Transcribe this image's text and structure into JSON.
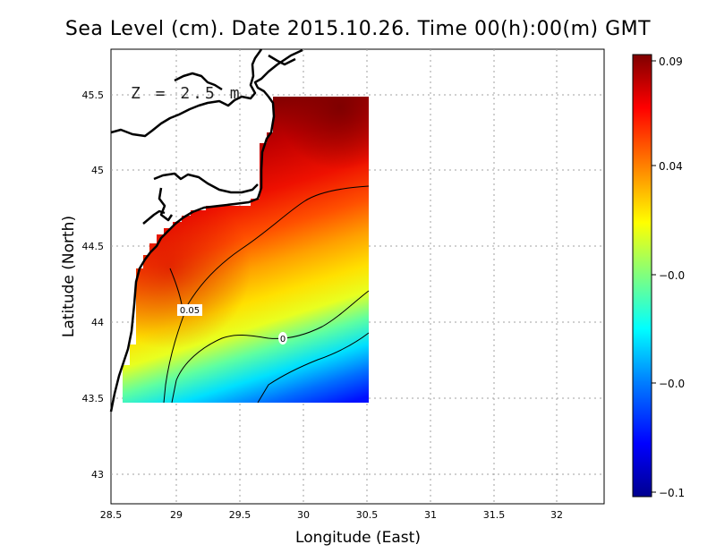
{
  "title": "Sea Level (cm). Date 2015.10.26. Time 00(h):00(m) GMT",
  "depth_label": "Z = 2.5 m",
  "colors": {
    "colormap": [
      "#00008f",
      "#0000ff",
      "#007fff",
      "#00ffff",
      "#7fff7f",
      "#ffff00",
      "#ff7f00",
      "#ff0000",
      "#7f0000"
    ],
    "land_outline": "#000000",
    "grid": "#a0a0a0"
  },
  "chart_data": {
    "type": "heatmap",
    "title": "Sea Level (cm). Date 2015.10.26. Time 00(h):00(m) GMT",
    "xlabel": "Longitude (East)",
    "ylabel": "Latitude (North)",
    "xlim": [
      28.5,
      32.4
    ],
    "ylim": [
      42.8,
      45.8
    ],
    "xticks": [
      28.5,
      29,
      29.5,
      30,
      30.5,
      31,
      31.5,
      32
    ],
    "xtick_labels": [
      "28.5",
      "29",
      "29.5",
      "30",
      "30.5",
      "31",
      "31.5",
      "32"
    ],
    "yticks": [
      43,
      43.5,
      44,
      44.5,
      45,
      45.5
    ],
    "ytick_labels": [
      "43",
      "43.5",
      "44",
      "44.5",
      "45",
      "45.5"
    ],
    "grid": true,
    "colorbar": {
      "range": [
        -0.1,
        0.09
      ],
      "tick_labels": [
        "0.09",
        "0.04",
        "−0.0",
        "−0.0",
        "−0.1"
      ],
      "placement": "right"
    },
    "contour_labels": [
      {
        "label": "0.05",
        "lon": 29.1,
        "lat": 44.07
      },
      {
        "label": "0",
        "lon": 29.85,
        "lat": 43.89
      }
    ],
    "field": {
      "lon_range": [
        28.62,
        30.55
      ],
      "lat_range": [
        43.48,
        45.5
      ],
      "max_value_region": "north-east",
      "min_value_region": "south-east"
    }
  }
}
